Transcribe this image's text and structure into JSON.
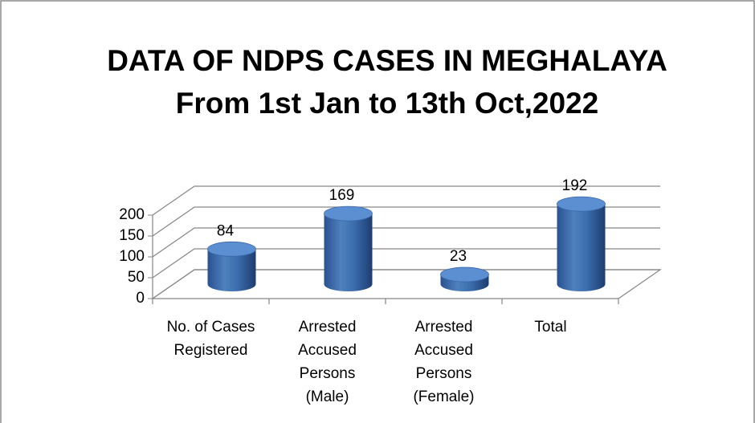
{
  "chart_data": {
    "type": "bar3d",
    "title": [
      "DATA OF NDPS CASES IN MEGHALAYA",
      "From 1st Jan  to 13th Oct,2022"
    ],
    "categories": [
      [
        "No. of Cases",
        "Registered"
      ],
      [
        "Arrested",
        "Accused",
        "Persons",
        "(Male)"
      ],
      [
        "Arrested",
        "Accused",
        "Persons",
        "(Female)"
      ],
      [
        "Total"
      ]
    ],
    "values": [
      84,
      169,
      23,
      192
    ],
    "color": "#4f81bd",
    "ylim": [
      0,
      200
    ],
    "yticks": [
      0,
      50,
      100,
      150,
      200
    ],
    "grid": true
  }
}
